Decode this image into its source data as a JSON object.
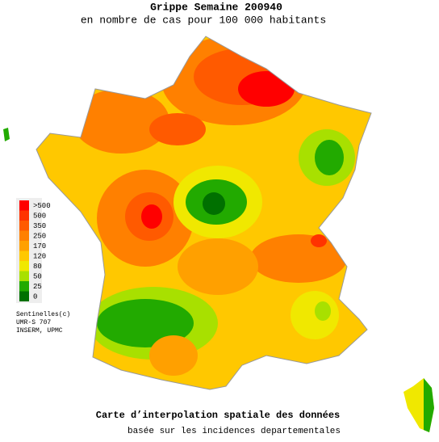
{
  "header": {
    "title": "Grippe Semaine 200940",
    "subtitle": "en nombre de cas pour 100 000 habitants"
  },
  "legend": [
    {
      "label": ">500",
      "color": "#ff0000"
    },
    {
      "label": "500",
      "color": "#ff3300"
    },
    {
      "label": "350",
      "color": "#ff5a00"
    },
    {
      "label": "250",
      "color": "#ff8000"
    },
    {
      "label": "170",
      "color": "#ffa000"
    },
    {
      "label": "120",
      "color": "#ffc800"
    },
    {
      "label": "80",
      "color": "#f0e800"
    },
    {
      "label": "50",
      "color": "#a8e000"
    },
    {
      "label": "25",
      "color": "#22aa00"
    },
    {
      "label": "0",
      "color": "#007000"
    }
  ],
  "credits": [
    "Sentinelles(c)",
    "UMR-S 707",
    "INSERM, UPMC"
  ],
  "footer": {
    "title": "Carte d’interpolation spatiale des données",
    "subtitle": "basée sur les incidences departementales"
  }
}
